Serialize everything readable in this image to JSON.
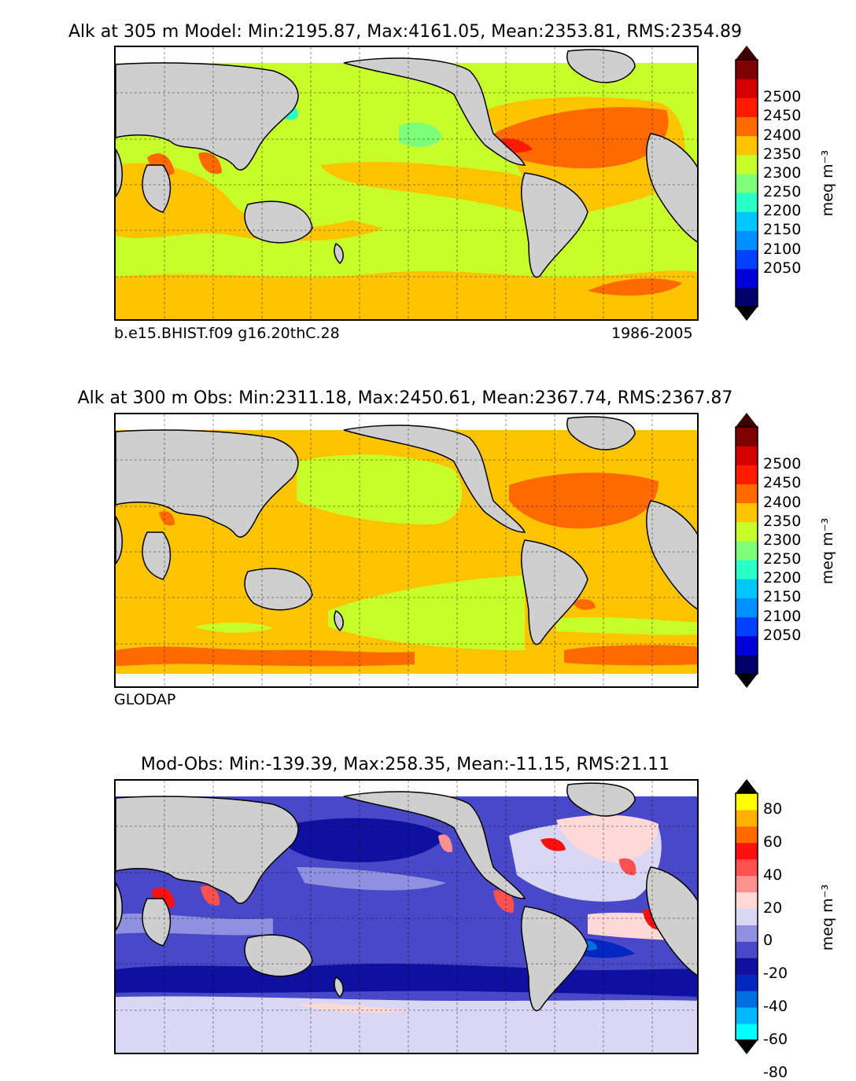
{
  "panels": [
    {
      "title": "Alk at 305 m Model: Min:2195.87, Max:4161.05, Mean:2353.81, RMS:2354.89",
      "footer_left": "b.e15.BHIST.f09 g16.20thC.28",
      "footer_right": "1986-2005",
      "colorbar_ticks": [
        "2500",
        "2450",
        "2400",
        "2350",
        "2300",
        "2250",
        "2200",
        "2150",
        "2100",
        "2050"
      ],
      "colorbar_unit": "meq m⁻³",
      "colorbar_colors": [
        "#00006a",
        "#0000d8",
        "#0040ff",
        "#0090ff",
        "#00c8ff",
        "#29ffc8",
        "#7dff7a",
        "#c8ff2a",
        "#ffc400",
        "#ff6a00",
        "#ff1a00",
        "#d40000",
        "#7f0000"
      ]
    },
    {
      "title": "Alk at 300 m Obs: Min:2311.18, Max:2450.61, Mean:2367.74, RMS:2367.87",
      "footer_left": "GLODAP",
      "footer_right": "",
      "colorbar_ticks": [
        "2500",
        "2450",
        "2400",
        "2350",
        "2300",
        "2250",
        "2200",
        "2150",
        "2100",
        "2050"
      ],
      "colorbar_unit": "meq m⁻³",
      "colorbar_colors": [
        "#00006a",
        "#0000d8",
        "#0040ff",
        "#0090ff",
        "#00c8ff",
        "#29ffc8",
        "#7dff7a",
        "#c8ff2a",
        "#ffc400",
        "#ff6a00",
        "#ff1a00",
        "#d40000",
        "#7f0000"
      ]
    },
    {
      "title": "Mod-Obs: Min:-139.39, Max:258.35, Mean:-11.15, RMS:21.11",
      "footer_left": "",
      "footer_right": "",
      "colorbar_ticks": [
        "80",
        "60",
        "40",
        "20",
        "0",
        "-20",
        "-40",
        "-60",
        "-80"
      ],
      "colorbar_unit": "meq m⁻³",
      "colorbar_colors": [
        "#00ffff",
        "#00b8ff",
        "#0070e0",
        "#0028c0",
        "#1010a0",
        "#4848c8",
        "#9090e0",
        "#d8d8f4",
        "#ffd8d8",
        "#ff9090",
        "#ff5050",
        "#ff1010",
        "#ff6a00",
        "#ffb000",
        "#ffff00"
      ]
    }
  ],
  "map_colors": {
    "land": "#cfcfcf",
    "no_data": "#ffffff"
  }
}
